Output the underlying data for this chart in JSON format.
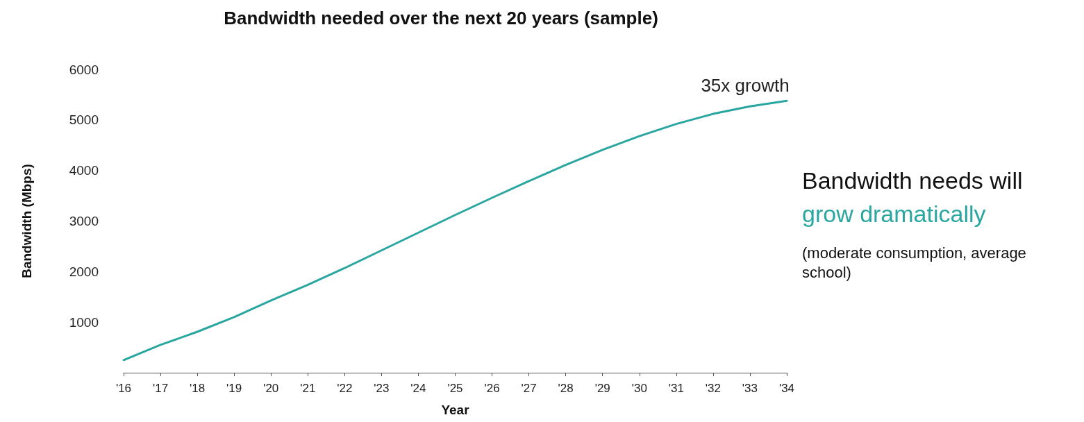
{
  "chart_data": {
    "type": "line",
    "title": "Bandwidth needed over the next 20 years (sample)",
    "xlabel": "Year",
    "ylabel": "Bandwidth (Mbps)",
    "categories": [
      "'16",
      "'17",
      "'18",
      "'19",
      "'20",
      "'21",
      "'22",
      "'23",
      "'24",
      "'25",
      "'26",
      "'27",
      "'28",
      "'29",
      "'30",
      "'31",
      "'32",
      "'33",
      "'34"
    ],
    "series": [
      {
        "color": "#2aa6a0",
        "values": [
          250,
          550,
          810,
          1100,
          1430,
          1740,
          2070,
          2420,
          2770,
          3120,
          3460,
          3790,
          4110,
          4410,
          4680,
          4920,
          5120,
          5270,
          5380
        ]
      }
    ],
    "ylim": [
      0,
      6000
    ],
    "yticks": [
      1000,
      2000,
      3000,
      4000,
      5000,
      6000
    ],
    "grid": false,
    "legend": false,
    "marker": "none",
    "line_style": "solid",
    "annotations": [
      {
        "text": "35x growth",
        "x": "'34",
        "y": 5380
      },
      "Bandwidth needs will",
      "grow dramatically",
      "(moderate consumption, average school)"
    ]
  }
}
